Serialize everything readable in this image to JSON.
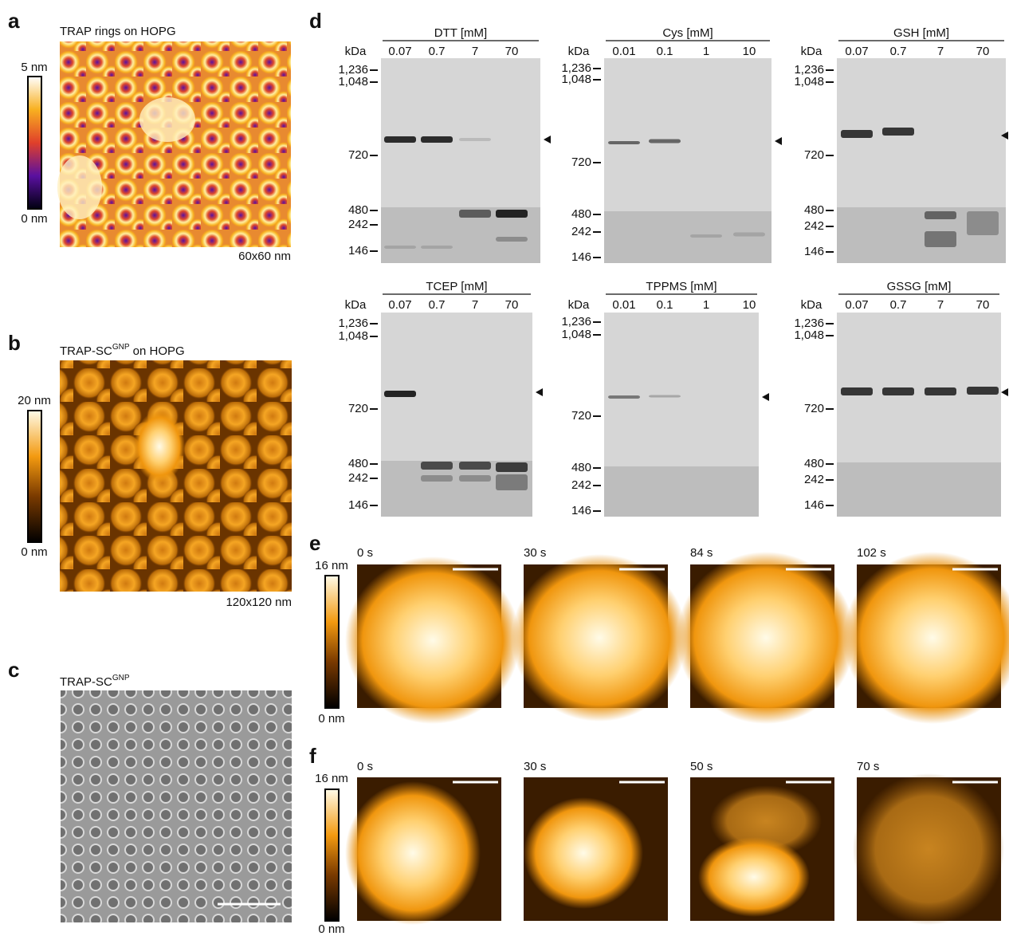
{
  "panels": {
    "a": {
      "label": "a",
      "title": "TRAP rings on HOPG",
      "colorbar": {
        "max": "5 nm",
        "min": "0 nm"
      },
      "scale": "60x60 nm"
    },
    "b": {
      "label": "b",
      "title": "TRAP-SC",
      "title_sup": "GNP",
      "title_suffix": " on HOPG",
      "colorbar": {
        "max": "20 nm",
        "min": "0 nm"
      },
      "scale": "120x120 nm"
    },
    "c": {
      "label": "c",
      "title": "TRAP-SC",
      "title_sup": "GNP"
    },
    "d": {
      "label": "d",
      "gels": [
        {
          "title": "DTT [mM]",
          "unit": "kDa",
          "lanes": [
            "0.07",
            "0.7",
            "7",
            "70"
          ],
          "markers": [
            "1,236",
            "1,048",
            "720",
            "480",
            "242",
            "146"
          ]
        },
        {
          "title": "Cys [mM]",
          "unit": "kDa",
          "lanes": [
            "0.01",
            "0.1",
            "1",
            "10"
          ],
          "markers": [
            "1,236",
            "1,048",
            "720",
            "480",
            "242",
            "146"
          ]
        },
        {
          "title": "GSH [mM]",
          "unit": "kDa",
          "lanes": [
            "0.07",
            "0.7",
            "7",
            "70"
          ],
          "markers": [
            "1,236",
            "1,048",
            "720",
            "480",
            "242",
            "146"
          ]
        },
        {
          "title": "TCEP [mM]",
          "unit": "kDa",
          "lanes": [
            "0.07",
            "0.7",
            "7",
            "70"
          ],
          "markers": [
            "1,236",
            "1,048",
            "720",
            "480",
            "242",
            "146"
          ]
        },
        {
          "title": "TPPMS [mM]",
          "unit": "kDa",
          "lanes": [
            "0.01",
            "0.1",
            "1",
            "10"
          ],
          "markers": [
            "1,236",
            "1,048",
            "720",
            "480",
            "242",
            "146"
          ]
        },
        {
          "title": "GSSG [mM]",
          "unit": "kDa",
          "lanes": [
            "0.07",
            "0.7",
            "7",
            "70"
          ],
          "markers": [
            "1,236",
            "1,048",
            "720",
            "480",
            "242",
            "146"
          ]
        }
      ]
    },
    "e": {
      "label": "e",
      "colorbar": {
        "max": "16 nm",
        "min": "0 nm"
      },
      "frames": [
        "0 s",
        "30 s",
        "84 s",
        "102 s"
      ]
    },
    "f": {
      "label": "f",
      "colorbar": {
        "max": "16 nm",
        "min": "0 nm"
      },
      "frames": [
        "0 s",
        "30 s",
        "50 s",
        "70 s"
      ]
    }
  }
}
